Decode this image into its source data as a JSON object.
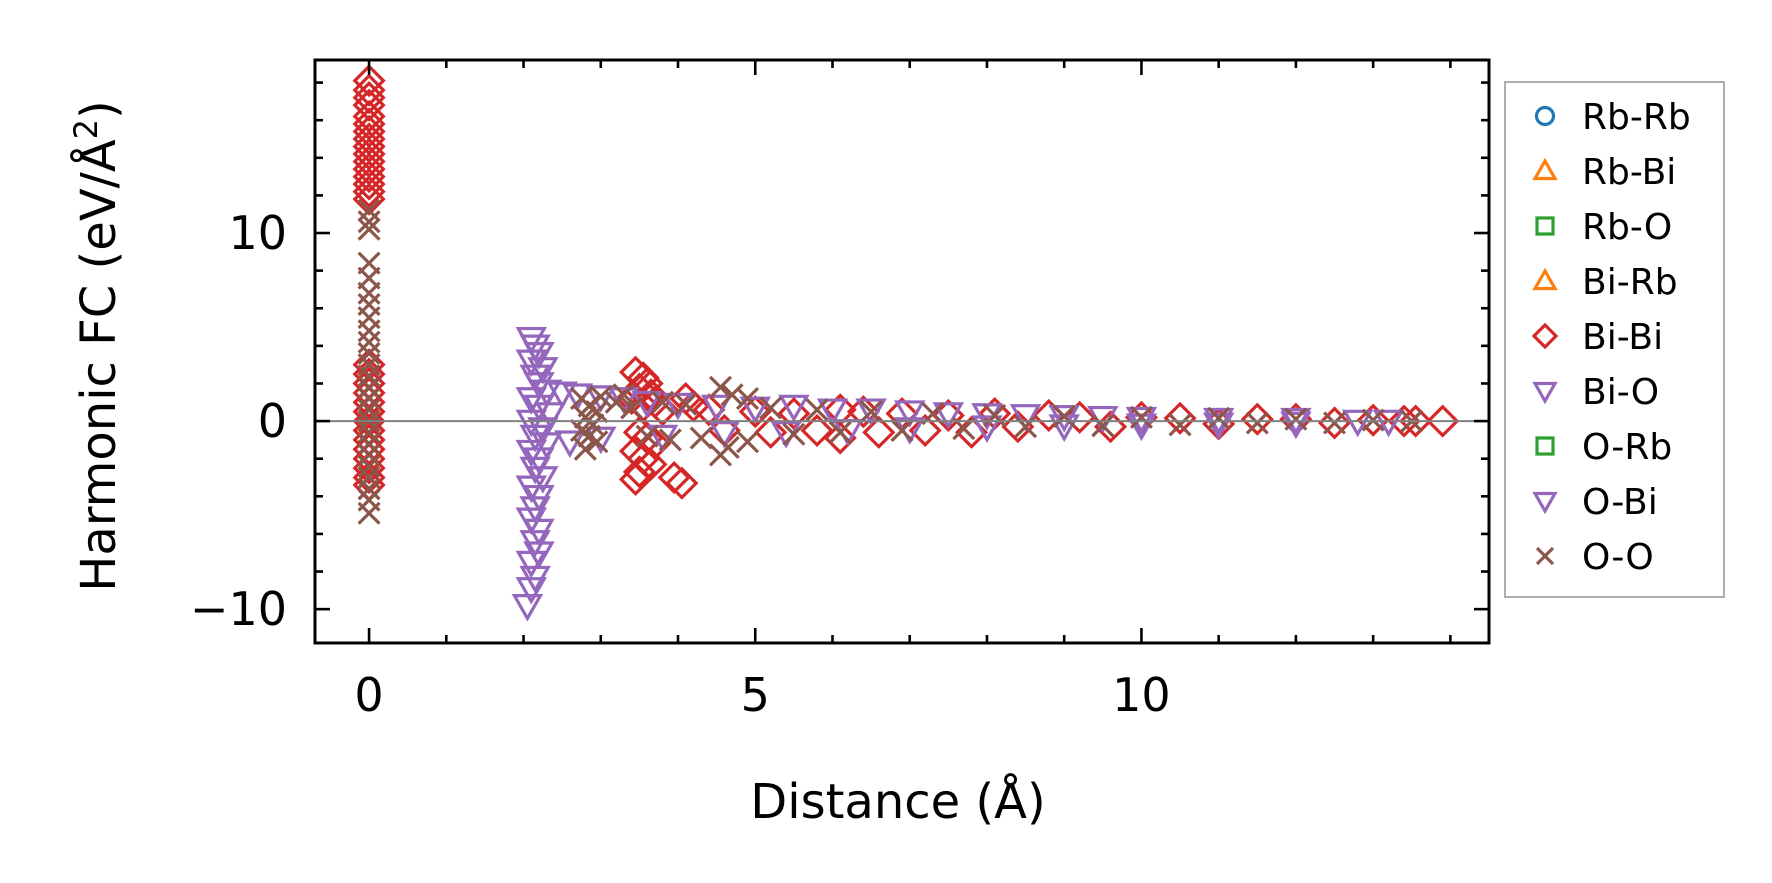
{
  "chart_data": {
    "type": "scatter",
    "title": "",
    "xlabel": "Distance (Å)",
    "ylabel_main": "Harmonic FC (eV/Å",
    "ylabel_sup": "2",
    "ylabel_end": ")",
    "xlim": [
      -0.7,
      14.5
    ],
    "ylim": [
      -11.8,
      19.2
    ],
    "xticks": [
      {
        "value": 0,
        "label": "0"
      },
      {
        "value": 5,
        "label": "5"
      },
      {
        "value": 10,
        "label": "10"
      }
    ],
    "yticks": [
      {
        "value": -10,
        "label": "−10"
      },
      {
        "value": 0,
        "label": "0"
      },
      {
        "value": 10,
        "label": "10"
      }
    ],
    "x_minor_step": 1,
    "y_minor_step": 2,
    "zero_line": true,
    "grid": false,
    "legend_position": "outside-right",
    "series": [
      {
        "name": "Rb-Rb",
        "marker": "circle",
        "color": "#1f77b4",
        "points": []
      },
      {
        "name": "Rb-Bi",
        "marker": "triangle-up",
        "color": "#ff7f0e",
        "points": []
      },
      {
        "name": "Rb-O",
        "marker": "square",
        "color": "#2ca02c",
        "points": []
      },
      {
        "name": "Bi-Rb",
        "marker": "triangle-up",
        "color": "#ff7f0e",
        "points": []
      },
      {
        "name": "Bi-Bi",
        "marker": "diamond",
        "color": "#d62728",
        "points": [
          [
            0,
            18.1
          ],
          [
            0,
            17.6
          ],
          [
            0,
            17.2
          ],
          [
            0,
            16.8
          ],
          [
            0,
            16.2
          ],
          [
            0,
            15.8
          ],
          [
            0,
            15.4
          ],
          [
            0,
            15.0
          ],
          [
            0,
            14.6
          ],
          [
            0,
            14.2
          ],
          [
            0,
            13.8
          ],
          [
            0,
            13.4
          ],
          [
            0,
            13.0
          ],
          [
            0,
            12.6
          ],
          [
            0,
            12.2
          ],
          [
            0,
            11.8
          ],
          [
            0,
            3.0
          ],
          [
            0,
            2.5
          ],
          [
            0,
            2.0
          ],
          [
            0,
            1.5
          ],
          [
            0,
            1.0
          ],
          [
            0,
            0.5
          ],
          [
            0,
            0.0
          ],
          [
            0,
            -0.5
          ],
          [
            0,
            -1.0
          ],
          [
            0,
            -1.5
          ],
          [
            0,
            -2.0
          ],
          [
            0,
            -2.5
          ],
          [
            0,
            -3.0
          ],
          [
            0,
            -3.4
          ],
          [
            3.45,
            2.6
          ],
          [
            3.55,
            2.3
          ],
          [
            3.6,
            2.0
          ],
          [
            3.5,
            1.7
          ],
          [
            3.65,
            1.4
          ],
          [
            3.4,
            1.2
          ],
          [
            3.7,
            1.0
          ],
          [
            3.55,
            0.8
          ],
          [
            3.8,
            0.6
          ],
          [
            3.5,
            -0.6
          ],
          [
            3.6,
            -0.9
          ],
          [
            3.7,
            -1.2
          ],
          [
            3.45,
            -1.6
          ],
          [
            3.55,
            -2.0
          ],
          [
            3.65,
            -2.3
          ],
          [
            3.5,
            -2.7
          ],
          [
            3.45,
            -3.1
          ],
          [
            3.95,
            -3.0
          ],
          [
            4.05,
            -3.3
          ],
          [
            4.1,
            1.2
          ],
          [
            4.2,
            0.8
          ],
          [
            4.4,
            0.6
          ],
          [
            4.6,
            -0.5
          ],
          [
            5.0,
            0.5
          ],
          [
            5.2,
            -0.6
          ],
          [
            5.5,
            0.4
          ],
          [
            5.8,
            -0.5
          ],
          [
            6.1,
            0.6
          ],
          [
            6.1,
            -0.9
          ],
          [
            6.4,
            0.5
          ],
          [
            6.6,
            -0.6
          ],
          [
            6.9,
            0.4
          ],
          [
            7.2,
            -0.5
          ],
          [
            7.5,
            0.3
          ],
          [
            7.8,
            -0.6
          ],
          [
            8.1,
            0.4
          ],
          [
            8.4,
            -0.3
          ],
          [
            8.8,
            0.3
          ],
          [
            9.2,
            0.2
          ],
          [
            9.6,
            -0.3
          ],
          [
            10.0,
            0.2
          ],
          [
            10.5,
            0.15
          ],
          [
            11.0,
            -0.15
          ],
          [
            11.5,
            0.1
          ],
          [
            12.0,
            0.1
          ],
          [
            12.5,
            -0.1
          ],
          [
            13.0,
            0.05
          ],
          [
            13.4,
            0.0
          ],
          [
            13.55,
            0.0
          ],
          [
            13.9,
            0.0
          ]
        ]
      },
      {
        "name": "Bi-O",
        "marker": "triangle-down",
        "color": "#9467bd",
        "points": [
          [
            2.1,
            4.4
          ],
          [
            2.15,
            4.0
          ],
          [
            2.2,
            3.6
          ],
          [
            2.1,
            3.2
          ],
          [
            2.25,
            2.8
          ],
          [
            2.15,
            2.4
          ],
          [
            2.2,
            2.0
          ],
          [
            2.3,
            1.6
          ],
          [
            2.1,
            1.2
          ],
          [
            2.2,
            0.8
          ],
          [
            2.35,
            0.4
          ],
          [
            2.1,
            0.0
          ],
          [
            2.25,
            -0.4
          ],
          [
            2.15,
            -0.8
          ],
          [
            2.3,
            -1.2
          ],
          [
            2.1,
            -1.6
          ],
          [
            2.2,
            -2.0
          ],
          [
            2.15,
            -2.5
          ],
          [
            2.25,
            -3.0
          ],
          [
            2.1,
            -3.5
          ],
          [
            2.2,
            -4.0
          ],
          [
            2.15,
            -4.6
          ],
          [
            2.1,
            -5.2
          ],
          [
            2.2,
            -5.8
          ],
          [
            2.15,
            -6.4
          ],
          [
            2.2,
            -7.0
          ],
          [
            2.1,
            -7.5
          ],
          [
            2.15,
            -8.3
          ],
          [
            2.1,
            -8.9
          ],
          [
            2.05,
            -9.8
          ],
          [
            2.5,
            1.5
          ],
          [
            2.7,
            1.4
          ],
          [
            3.0,
            1.3
          ],
          [
            3.3,
            1.2
          ],
          [
            3.6,
            1.0
          ],
          [
            4.0,
            0.9
          ],
          [
            4.5,
            0.8
          ],
          [
            5.0,
            0.7
          ],
          [
            5.5,
            0.8
          ],
          [
            6.0,
            0.6
          ],
          [
            6.5,
            0.6
          ],
          [
            7.0,
            0.5
          ],
          [
            7.5,
            0.4
          ],
          [
            8.0,
            0.35
          ],
          [
            8.5,
            0.3
          ],
          [
            9.0,
            0.25
          ],
          [
            9.5,
            0.2
          ],
          [
            10.0,
            0.15
          ],
          [
            11.0,
            0.1
          ],
          [
            12.0,
            0.1
          ],
          [
            12.8,
            0.0
          ],
          [
            13.2,
            0.0
          ],
          [
            2.6,
            -1.1
          ],
          [
            3.0,
            -0.9
          ],
          [
            3.8,
            -0.8
          ],
          [
            4.6,
            -0.6
          ],
          [
            5.4,
            -0.6
          ],
          [
            6.2,
            -0.5
          ],
          [
            7.0,
            -0.4
          ],
          [
            8.0,
            -0.3
          ],
          [
            9.0,
            -0.25
          ],
          [
            10.0,
            -0.2
          ],
          [
            11.0,
            -0.15
          ],
          [
            12.0,
            -0.1
          ]
        ]
      },
      {
        "name": "O-Rb",
        "marker": "square",
        "color": "#2ca02c",
        "points": []
      },
      {
        "name": "O-Bi",
        "marker": "triangle-down",
        "color": "#9467bd",
        "points": []
      },
      {
        "name": "O-O",
        "marker": "x",
        "color": "#8c564b",
        "points": [
          [
            0,
            11.2
          ],
          [
            0,
            10.6
          ],
          [
            0,
            10.2
          ],
          [
            0,
            8.4
          ],
          [
            0,
            7.6
          ],
          [
            0,
            6.8
          ],
          [
            0,
            6.2
          ],
          [
            0,
            5.5
          ],
          [
            0,
            4.8
          ],
          [
            0,
            4.2
          ],
          [
            0,
            3.6
          ],
          [
            0,
            3.0
          ],
          [
            0,
            2.4
          ],
          [
            0,
            1.8
          ],
          [
            0,
            1.2
          ],
          [
            0,
            0.6
          ],
          [
            0,
            0.0
          ],
          [
            0,
            -0.6
          ],
          [
            0,
            -1.2
          ],
          [
            0,
            -1.8
          ],
          [
            0,
            -2.4
          ],
          [
            0,
            -3.0
          ],
          [
            0,
            -3.6
          ],
          [
            0,
            -4.2
          ],
          [
            0,
            -4.9
          ],
          [
            2.75,
            1.2
          ],
          [
            2.85,
            0.8
          ],
          [
            2.95,
            0.5
          ],
          [
            2.8,
            0.2
          ],
          [
            2.9,
            -0.2
          ],
          [
            2.75,
            -0.5
          ],
          [
            2.85,
            -0.8
          ],
          [
            2.95,
            -1.1
          ],
          [
            2.8,
            -1.5
          ],
          [
            3.0,
            1.3
          ],
          [
            3.2,
            1.0
          ],
          [
            3.3,
            1.4
          ],
          [
            3.4,
            0.7
          ],
          [
            3.6,
            -0.8
          ],
          [
            3.8,
            1.0
          ],
          [
            3.9,
            -1.0
          ],
          [
            4.1,
            0.9
          ],
          [
            4.3,
            -0.9
          ],
          [
            4.55,
            1.8
          ],
          [
            4.55,
            -1.8
          ],
          [
            4.7,
            1.4
          ],
          [
            4.65,
            -1.4
          ],
          [
            4.9,
            1.2
          ],
          [
            4.9,
            -1.1
          ],
          [
            5.2,
            0.7
          ],
          [
            5.5,
            -0.7
          ],
          [
            5.8,
            0.6
          ],
          [
            6.1,
            -0.6
          ],
          [
            6.5,
            0.5
          ],
          [
            6.9,
            -0.5
          ],
          [
            7.3,
            0.4
          ],
          [
            7.7,
            -0.4
          ],
          [
            8.1,
            0.3
          ],
          [
            8.5,
            -0.3
          ],
          [
            9.0,
            0.25
          ],
          [
            9.5,
            -0.25
          ],
          [
            10.0,
            0.2
          ],
          [
            10.5,
            -0.2
          ],
          [
            11.0,
            0.15
          ],
          [
            11.5,
            -0.1
          ],
          [
            12.0,
            0.1
          ],
          [
            12.5,
            -0.1
          ],
          [
            13.0,
            0.05
          ],
          [
            13.5,
            0.0
          ]
        ]
      }
    ]
  }
}
